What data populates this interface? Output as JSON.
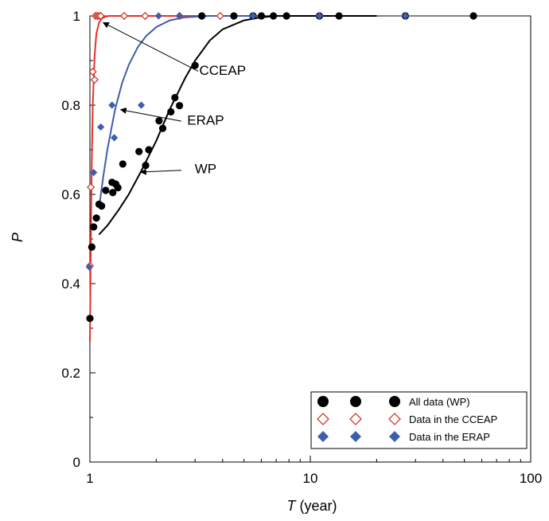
{
  "chart_data": {
    "type": "scatter",
    "title": "",
    "xlabel_italic": "T",
    "xlabel_rest": " (year)",
    "ylabel": "P",
    "x_scale": "log",
    "xlim": [
      1,
      100
    ],
    "ylim": [
      0,
      1
    ],
    "x_ticks": [
      1,
      10,
      100
    ],
    "x_tick_labels": [
      "1",
      "10",
      "100"
    ],
    "y_ticks": [
      0,
      0.2,
      0.4,
      0.6,
      0.8,
      1
    ],
    "y_tick_labels": [
      "0",
      "0.2",
      "0.4",
      "0.6",
      "0.8",
      "1"
    ],
    "grid": false,
    "legend_position": "bottom-right",
    "series": [
      {
        "name": "All data (WP)",
        "marker": "filled-circle",
        "color": "#000000",
        "x": [
          1.0,
          1.02,
          1.04,
          1.07,
          1.1,
          1.13,
          1.18,
          1.26,
          1.27,
          1.31,
          1.34,
          1.41,
          1.67,
          1.79,
          1.85,
          2.06,
          2.14,
          2.33,
          2.43,
          2.55,
          3.0,
          3.22,
          4.5,
          5.5,
          6.0,
          6.8,
          7.8,
          11.0,
          13.5,
          27.0,
          55.0
        ],
        "y": [
          0.322,
          0.482,
          0.527,
          0.547,
          0.578,
          0.574,
          0.609,
          0.627,
          0.604,
          0.623,
          0.615,
          0.668,
          0.696,
          0.665,
          0.7,
          0.765,
          0.748,
          0.785,
          0.817,
          0.799,
          0.889,
          1.0,
          1.0,
          1.0,
          1.0,
          1.0,
          1.0,
          1.0,
          1.0,
          1.0,
          1.0
        ]
      },
      {
        "name": "Data in the CCEAP",
        "marker": "open-diamond",
        "color": "#d03a2a",
        "x": [
          1.0,
          1.01,
          1.03,
          1.05,
          1.06,
          1.08,
          1.1,
          1.12,
          1.43,
          1.78,
          2.55,
          3.9
        ],
        "y": [
          0.44,
          0.616,
          0.875,
          0.857,
          1.0,
          1.0,
          1.0,
          1.0,
          1.0,
          1.0,
          1.0,
          1.0
        ]
      },
      {
        "name": "Data in the ERAP",
        "marker": "filled-diamond",
        "color": "#3e5dab",
        "x": [
          0.995,
          1.04,
          1.12,
          1.26,
          1.29,
          1.71,
          2.05,
          2.55,
          5.5,
          11.0,
          27.0
        ],
        "y": [
          0.437,
          0.649,
          0.751,
          0.8,
          0.727,
          0.8,
          1.0,
          1.0,
          1.0,
          1.0,
          1.0
        ]
      }
    ],
    "fitted_curves": [
      {
        "label": "CCEAP",
        "color": "#e8302a",
        "x": [
          1.0,
          1.01,
          1.02,
          1.03,
          1.05,
          1.07,
          1.1,
          1.13,
          1.17,
          1.22,
          1.4,
          2,
          5,
          20
        ],
        "y": [
          0.27,
          0.5,
          0.68,
          0.8,
          0.91,
          0.96,
          0.985,
          0.994,
          0.998,
          1.0,
          1.0,
          1.0,
          1.0,
          1.0
        ]
      },
      {
        "label": "ERAP",
        "color": "#3e5dab",
        "x": [
          1.1,
          1.15,
          1.2,
          1.3,
          1.4,
          1.5,
          1.65,
          1.8,
          2.0,
          2.3,
          2.7,
          3.5,
          5,
          10,
          20
        ],
        "y": [
          0.57,
          0.64,
          0.7,
          0.79,
          0.85,
          0.89,
          0.93,
          0.955,
          0.975,
          0.99,
          0.997,
          1.0,
          1.0,
          1.0,
          1.0
        ]
      },
      {
        "label": "WP",
        "color": "#000000",
        "x": [
          1.1,
          1.2,
          1.35,
          1.5,
          1.7,
          2.0,
          2.3,
          2.7,
          3.0,
          3.5,
          4.0,
          5.0,
          6.0,
          7.0,
          8.0,
          10,
          20
        ],
        "y": [
          0.51,
          0.53,
          0.565,
          0.6,
          0.65,
          0.72,
          0.79,
          0.86,
          0.9,
          0.945,
          0.97,
          0.99,
          0.997,
          1.0,
          1.0,
          1.0,
          1.0
        ]
      }
    ],
    "annotations": [
      {
        "text": "CCEAP",
        "text_x": 4.0,
        "text_y": 0.868,
        "arrow_from_x": 3.1,
        "arrow_from_y": 0.876,
        "arrow_to_x": 1.15,
        "arrow_to_y": 0.985
      },
      {
        "text": "ERAP",
        "text_x": 3.35,
        "text_y": 0.756,
        "arrow_from_x": 2.6,
        "arrow_from_y": 0.764,
        "arrow_to_x": 1.38,
        "arrow_to_y": 0.79
      },
      {
        "text": "WP",
        "text_x": 3.35,
        "text_y": 0.647,
        "arrow_from_x": 2.6,
        "arrow_from_y": 0.654,
        "arrow_to_x": 1.7,
        "arrow_to_y": 0.65
      }
    ]
  }
}
